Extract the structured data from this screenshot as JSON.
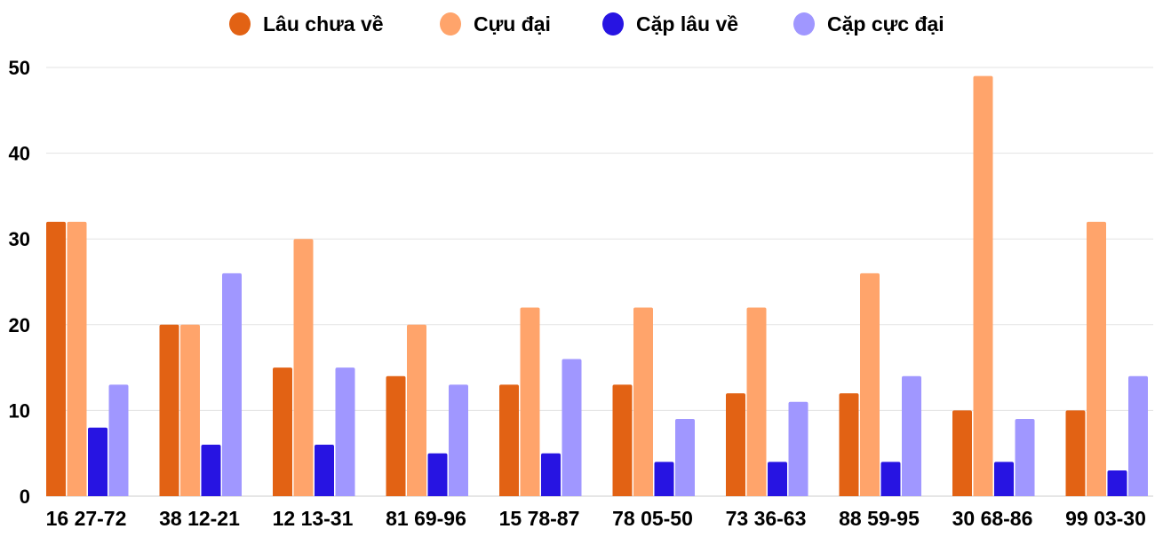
{
  "chart_data": {
    "type": "bar",
    "title": "",
    "xlabel": "",
    "ylabel": "",
    "ylim": [
      0,
      50
    ],
    "yticks": [
      0,
      10,
      20,
      30,
      40,
      50
    ],
    "grid": true,
    "legend_position": "top",
    "categories": [
      "16 27-72",
      "38 12-21",
      "12 13-31",
      "81 69-96",
      "15 78-87",
      "78 05-50",
      "73 36-63",
      "88 59-95",
      "30 68-86",
      "99 03-30"
    ],
    "series": [
      {
        "name": "Lâu chưa về",
        "color": "#e26214",
        "values": [
          32,
          20,
          15,
          14,
          13,
          13,
          12,
          12,
          10,
          10
        ]
      },
      {
        "name": "Cựu đại",
        "color": "#ffa46b",
        "values": [
          32,
          20,
          30,
          20,
          22,
          22,
          22,
          26,
          49,
          32
        ]
      },
      {
        "name": "Cặp lâu về",
        "color": "#2714e2",
        "values": [
          8,
          6,
          6,
          5,
          5,
          4,
          4,
          4,
          4,
          3
        ]
      },
      {
        "name": "Cặp cực đại",
        "color": "#a097ff",
        "values": [
          13,
          26,
          15,
          13,
          16,
          9,
          11,
          14,
          9,
          14
        ]
      }
    ]
  }
}
